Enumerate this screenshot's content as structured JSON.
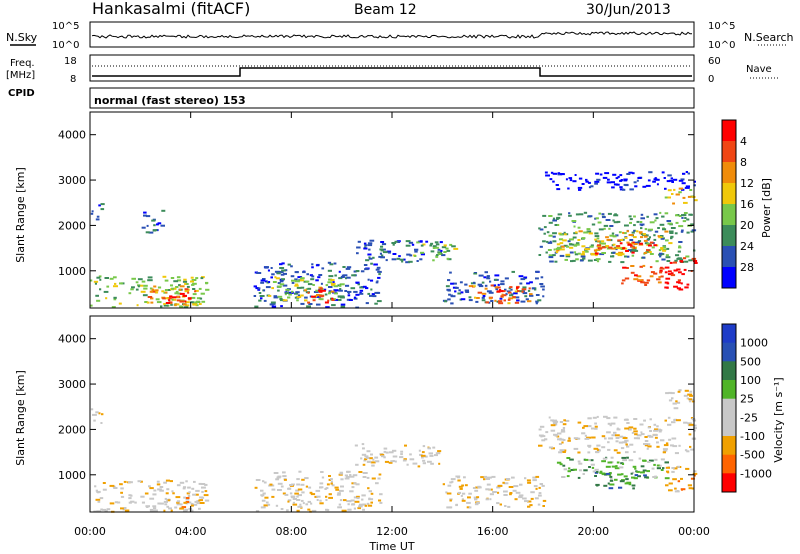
{
  "header": {
    "station": "Hankasalmi (fitACF)",
    "beam": "Beam 12",
    "date": "30/Jun/2013"
  },
  "panel_labels": {
    "nsky": "N.Sky",
    "nsearch": "N.Search",
    "freq_line1": "Freq.",
    "freq_line2": "[MHz]",
    "nave": "Nave",
    "cpid": "CPID",
    "cpid_value": "normal (fast stereo) 153"
  },
  "noise_axis": {
    "left_top": "10^5",
    "left_bottom": "10^0",
    "right_top": "10^5",
    "right_bottom": "10^0"
  },
  "freq_axis": {
    "left_top": "18",
    "left_bottom": "8",
    "right_top": "60",
    "right_bottom": "0"
  },
  "colors": {
    "power": [
      "#0000ff",
      "#2a50b4",
      "#3c8c5a",
      "#78c84a",
      "#f0c80a",
      "#f08c0a",
      "#f04614",
      "#ff0000"
    ],
    "velocity": [
      "#ff0000",
      "#ff6400",
      "#f0a000",
      "#c8c8c8",
      "#c8c8c8",
      "#50b428",
      "#327846",
      "#2850b4",
      "#1e3cc8"
    ]
  },
  "chart_data": [
    {
      "type": "heatmap",
      "name": "power",
      "ylabel": "Slant Range [km]",
      "yticks": [
        "1000",
        "2000",
        "3000",
        "4000"
      ],
      "ylim": [
        180,
        4500
      ],
      "xlim": [
        0,
        24
      ],
      "colorbar_label": "Power [dB]",
      "colorbar_ticks": [
        "4",
        "8",
        "12",
        "16",
        "20",
        "24",
        "28"
      ],
      "regions": [
        {
          "t0": 0.0,
          "t1": 4.6,
          "r0": 200,
          "r1": 900,
          "level": 3
        },
        {
          "t0": 2.2,
          "t1": 4.2,
          "r0": 250,
          "r1": 700,
          "level": 5
        },
        {
          "t0": 3.0,
          "t1": 3.9,
          "r0": 260,
          "r1": 560,
          "level": 7
        },
        {
          "t0": 0.0,
          "t1": 0.5,
          "r0": 2150,
          "r1": 2500,
          "level": 1
        },
        {
          "t0": 2.0,
          "t1": 2.9,
          "r0": 1850,
          "r1": 2350,
          "level": 1
        },
        {
          "t0": 6.5,
          "t1": 11.5,
          "r0": 200,
          "r1": 1200,
          "level": 1
        },
        {
          "t0": 7.0,
          "t1": 10.0,
          "r0": 350,
          "r1": 900,
          "level": 3
        },
        {
          "t0": 8.5,
          "t1": 9.8,
          "r0": 300,
          "r1": 650,
          "level": 6
        },
        {
          "t0": 10.5,
          "t1": 14.0,
          "r0": 1200,
          "r1": 1700,
          "level": 1
        },
        {
          "t0": 12.8,
          "t1": 14.5,
          "r0": 1250,
          "r1": 1650,
          "level": 3
        },
        {
          "t0": 14.0,
          "t1": 18.0,
          "r0": 300,
          "r1": 1000,
          "level": 1
        },
        {
          "t0": 15.0,
          "t1": 17.0,
          "r0": 300,
          "r1": 700,
          "level": 5
        },
        {
          "t0": 16.0,
          "t1": 17.5,
          "r0": 350,
          "r1": 650,
          "level": 6
        },
        {
          "t0": 17.8,
          "t1": 24.0,
          "r0": 1200,
          "r1": 2300,
          "level": 2
        },
        {
          "t0": 18.5,
          "t1": 23.0,
          "r0": 1350,
          "r1": 1900,
          "level": 4
        },
        {
          "t0": 20.0,
          "t1": 22.5,
          "r0": 1400,
          "r1": 1700,
          "level": 6
        },
        {
          "t0": 21.0,
          "t1": 23.0,
          "r0": 700,
          "r1": 1150,
          "level": 6
        },
        {
          "t0": 22.8,
          "t1": 24.0,
          "r0": 600,
          "r1": 1300,
          "level": 7
        },
        {
          "t0": 18.0,
          "t1": 24.0,
          "r0": 2800,
          "r1": 3200,
          "level": 0
        },
        {
          "t0": 22.8,
          "t1": 24.0,
          "r0": 2500,
          "r1": 2850,
          "level": 4
        }
      ]
    },
    {
      "type": "heatmap",
      "name": "velocity",
      "ylabel": "Slant Range [km]",
      "yticks": [
        "1000",
        "2000",
        "3000",
        "4000"
      ],
      "ylim": [
        180,
        4500
      ],
      "xlim": [
        0,
        24
      ],
      "xlabel": "Time UT",
      "xticks": [
        "00:00",
        "04:00",
        "08:00",
        "12:00",
        "16:00",
        "20:00",
        "00:00"
      ],
      "colorbar_label": "Velocity [m s⁻¹]",
      "colorbar_ticks": [
        "1000",
        "500",
        "100",
        "25",
        "-25",
        "-100",
        "-500",
        "-1000"
      ],
      "regions": [
        {
          "t0": 0.0,
          "t1": 4.6,
          "r0": 200,
          "r1": 900,
          "level": 3
        },
        {
          "t0": 0.0,
          "t1": 0.5,
          "r0": 2150,
          "r1": 2500,
          "level": 3
        },
        {
          "t0": 6.5,
          "t1": 11.5,
          "r0": 200,
          "r1": 1100,
          "level": 3
        },
        {
          "t0": 10.5,
          "t1": 14.0,
          "r0": 1200,
          "r1": 1700,
          "level": 3
        },
        {
          "t0": 14.0,
          "t1": 18.0,
          "r0": 300,
          "r1": 1000,
          "level": 3
        },
        {
          "t0": 17.8,
          "t1": 24.0,
          "r0": 1500,
          "r1": 2300,
          "level": 3
        },
        {
          "t0": 18.5,
          "t1": 23.0,
          "r0": 900,
          "r1": 1400,
          "level": 5
        },
        {
          "t0": 20.0,
          "t1": 22.0,
          "r0": 700,
          "r1": 1100,
          "level": 6
        },
        {
          "t0": 22.8,
          "t1": 24.0,
          "r0": 600,
          "r1": 1200,
          "level": 2
        },
        {
          "t0": 22.8,
          "t1": 24.0,
          "r0": 2450,
          "r1": 2900,
          "level": 3
        },
        {
          "t0": 3.5,
          "t1": 4.4,
          "r0": 260,
          "r1": 600,
          "level": 2
        }
      ]
    }
  ]
}
